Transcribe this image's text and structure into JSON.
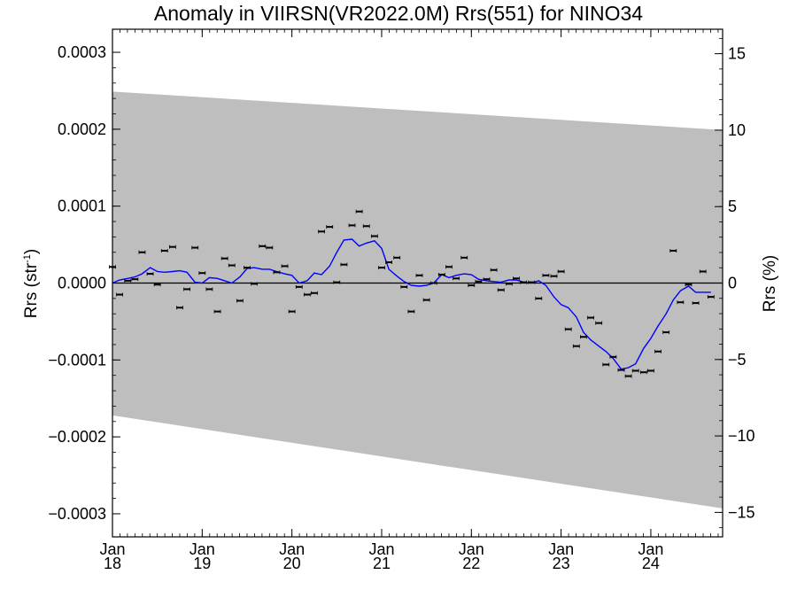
{
  "chart_data": {
    "type": "line",
    "title": "Anomaly in VIIRSN(VR2022.0M) Rrs(551) for NINO34",
    "ylabel_left_main": "Rrs (str",
    "ylabel_left_exp": "-1",
    "ylabel_left_tail": ")",
    "ylabel_right": "Rrs (%)",
    "xlim": [
      2018.0,
      2024.8
    ],
    "ylim_left": [
      -0.00033,
      0.00033
    ],
    "ylim_right": [
      -16.6,
      16.6
    ],
    "yticks_left": [
      "0.0003",
      "0.0002",
      "0.0001",
      "0.0000",
      "−0.0001",
      "−0.0002",
      "−0.0003"
    ],
    "yticks_left_values": [
      0.0003,
      0.0002,
      0.0001,
      0.0,
      -0.0001,
      -0.0002,
      -0.0003
    ],
    "yticks_right": [
      "15",
      "10",
      "5",
      "0",
      "−5",
      "−10",
      "−15"
    ],
    "yticks_right_values": [
      15,
      10,
      5,
      0,
      -5,
      -10,
      -15
    ],
    "xticks": [
      {
        "value": 2018,
        "month": "Jan",
        "year": "18"
      },
      {
        "value": 2019,
        "month": "Jan",
        "year": "19"
      },
      {
        "value": 2020,
        "month": "Jan",
        "year": "20"
      },
      {
        "value": 2021,
        "month": "Jan",
        "year": "21"
      },
      {
        "value": 2022,
        "month": "Jan",
        "year": "22"
      },
      {
        "value": 2023,
        "month": "Jan",
        "year": "23"
      },
      {
        "value": 2024,
        "month": "Jan",
        "year": "24"
      }
    ],
    "band": {
      "color": "#bebebe",
      "upper": [
        [
          2018.0,
          0.000249
        ],
        [
          2024.8,
          0.000199
        ]
      ],
      "lower": [
        [
          2018.0,
          -0.000172
        ],
        [
          2024.8,
          -0.000293
        ]
      ]
    },
    "zero_line": 0.0,
    "points": [
      [
        2018.0,
        2.1e-05
      ],
      [
        2018.08,
        -1.5e-05
      ],
      [
        2018.17,
        3e-06
      ],
      [
        2018.25,
        5e-06
      ],
      [
        2018.33,
        4e-05
      ],
      [
        2018.42,
        1.2e-05
      ],
      [
        2018.5,
        -2e-06
      ],
      [
        2018.58,
        4.2e-05
      ],
      [
        2018.67,
        4.7e-05
      ],
      [
        2018.75,
        -3.2e-05
      ],
      [
        2018.83,
        -8e-06
      ],
      [
        2018.92,
        4.6e-05
      ],
      [
        2019.0,
        1.3e-05
      ],
      [
        2019.08,
        -8e-06
      ],
      [
        2019.17,
        -3.7e-05
      ],
      [
        2019.25,
        3.2e-05
      ],
      [
        2019.33,
        2.3e-05
      ],
      [
        2019.42,
        -2.3e-05
      ],
      [
        2019.5,
        2e-05
      ],
      [
        2019.58,
        -1e-06
      ],
      [
        2019.67,
        4.8e-05
      ],
      [
        2019.75,
        4.6e-05
      ],
      [
        2019.83,
        1.4e-05
      ],
      [
        2019.92,
        2.2e-05
      ],
      [
        2020.0,
        -3.7e-05
      ],
      [
        2020.08,
        -5e-06
      ],
      [
        2020.17,
        -1.5e-05
      ],
      [
        2020.25,
        -1.3e-05
      ],
      [
        2020.33,
        6.7e-05
      ],
      [
        2020.42,
        7.3e-05
      ],
      [
        2020.5,
        1e-06
      ],
      [
        2020.58,
        2.4e-05
      ],
      [
        2020.67,
        7.5e-05
      ],
      [
        2020.75,
        9.3e-05
      ],
      [
        2020.83,
        7.4e-05
      ],
      [
        2020.92,
        6.1e-05
      ],
      [
        2021.0,
        2e-05
      ],
      [
        2021.08,
        2.7e-05
      ],
      [
        2021.17,
        3.3e-05
      ],
      [
        2021.25,
        -5e-06
      ],
      [
        2021.33,
        -3.7e-05
      ],
      [
        2021.42,
        1e-05
      ],
      [
        2021.5,
        -2.2e-05
      ],
      [
        2021.58,
        0.0
      ],
      [
        2021.67,
        1.1e-05
      ],
      [
        2021.75,
        2.1e-05
      ],
      [
        2021.83,
        6e-06
      ],
      [
        2021.92,
        3.3e-05
      ],
      [
        2022.0,
        -3e-06
      ],
      [
        2022.08,
        2e-06
      ],
      [
        2022.17,
        5e-06
      ],
      [
        2022.25,
        1.7e-05
      ],
      [
        2022.33,
        -9e-06
      ],
      [
        2022.42,
        -1e-06
      ],
      [
        2022.5,
        6e-06
      ],
      [
        2022.58,
        1e-06
      ],
      [
        2022.67,
        1e-06
      ],
      [
        2022.75,
        -2e-05
      ],
      [
        2022.83,
        1e-05
      ],
      [
        2022.92,
        9e-06
      ],
      [
        2023.0,
        1.5e-05
      ],
      [
        2023.08,
        -6e-05
      ],
      [
        2023.17,
        -8.2e-05
      ],
      [
        2023.25,
        -7e-05
      ],
      [
        2023.33,
        -4.5e-05
      ],
      [
        2023.42,
        -5.2e-05
      ],
      [
        2023.5,
        -0.000106
      ],
      [
        2023.58,
        -9.6e-05
      ],
      [
        2023.67,
        -0.000113
      ],
      [
        2023.75,
        -0.000121
      ],
      [
        2023.83,
        -0.000114
      ],
      [
        2023.92,
        -0.000116
      ],
      [
        2024.0,
        -0.000114
      ],
      [
        2024.08,
        -8.9e-05
      ],
      [
        2024.17,
        -6.4e-05
      ],
      [
        2024.25,
        4.2e-05
      ],
      [
        2024.33,
        -2.5e-05
      ],
      [
        2024.42,
        -2e-06
      ],
      [
        2024.5,
        -2.6e-05
      ],
      [
        2024.58,
        1.5e-05
      ],
      [
        2024.67,
        -1.8e-05
      ]
    ],
    "smooth_line": [
      [
        2018.0,
        0.0
      ],
      [
        2018.08,
        4e-06
      ],
      [
        2018.17,
        6e-06
      ],
      [
        2018.25,
        8e-06
      ],
      [
        2018.33,
        1.2e-05
      ],
      [
        2018.42,
        2e-05
      ],
      [
        2018.5,
        1.5e-05
      ],
      [
        2018.58,
        1.4e-05
      ],
      [
        2018.67,
        1.5e-05
      ],
      [
        2018.75,
        1.6e-05
      ],
      [
        2018.83,
        1.4e-05
      ],
      [
        2018.92,
        1e-06
      ],
      [
        2019.0,
        0.0
      ],
      [
        2019.08,
        7e-06
      ],
      [
        2019.17,
        6e-06
      ],
      [
        2019.25,
        3e-06
      ],
      [
        2019.33,
        0.0
      ],
      [
        2019.42,
        8e-06
      ],
      [
        2019.5,
        1.9e-05
      ],
      [
        2019.58,
        2e-05
      ],
      [
        2019.67,
        1.8e-05
      ],
      [
        2019.75,
        1.8e-05
      ],
      [
        2019.83,
        1.5e-05
      ],
      [
        2019.92,
        1.2e-05
      ],
      [
        2020.0,
        1e-05
      ],
      [
        2020.08,
        0.0
      ],
      [
        2020.17,
        3e-06
      ],
      [
        2020.25,
        1.3e-05
      ],
      [
        2020.33,
        1.1e-05
      ],
      [
        2020.42,
        2.2e-05
      ],
      [
        2020.5,
        4e-05
      ],
      [
        2020.58,
        5.6e-05
      ],
      [
        2020.67,
        5.7e-05
      ],
      [
        2020.75,
        4.8e-05
      ],
      [
        2020.83,
        5.2e-05
      ],
      [
        2020.92,
        5.5e-05
      ],
      [
        2021.0,
        4.5e-05
      ],
      [
        2021.08,
        1.8e-05
      ],
      [
        2021.17,
        9e-06
      ],
      [
        2021.25,
        2e-06
      ],
      [
        2021.33,
        -3e-06
      ],
      [
        2021.42,
        -4e-06
      ],
      [
        2021.5,
        -3e-06
      ],
      [
        2021.58,
        0.0
      ],
      [
        2021.67,
        1.1e-05
      ],
      [
        2021.75,
        7e-06
      ],
      [
        2021.83,
        1e-05
      ],
      [
        2021.92,
        1.2e-05
      ],
      [
        2022.0,
        1.1e-05
      ],
      [
        2022.08,
        5e-06
      ],
      [
        2022.17,
        3e-06
      ],
      [
        2022.25,
        2e-06
      ],
      [
        2022.33,
        1e-06
      ],
      [
        2022.42,
        4e-06
      ],
      [
        2022.5,
        4e-06
      ],
      [
        2022.58,
        1e-06
      ],
      [
        2022.67,
        0.0
      ],
      [
        2022.75,
        3e-06
      ],
      [
        2022.83,
        -3e-06
      ],
      [
        2022.92,
        -1.8e-05
      ],
      [
        2023.0,
        -2.8e-05
      ],
      [
        2023.08,
        -3.2e-05
      ],
      [
        2023.17,
        -4.4e-05
      ],
      [
        2023.25,
        -6.4e-05
      ],
      [
        2023.33,
        -7.4e-05
      ],
      [
        2023.42,
        -8.2e-05
      ],
      [
        2023.5,
        -8.9e-05
      ],
      [
        2023.58,
        -9.8e-05
      ],
      [
        2023.67,
        -0.000112
      ],
      [
        2023.75,
        -0.00011
      ],
      [
        2023.83,
        -0.000105
      ],
      [
        2023.92,
        -8.5e-05
      ],
      [
        2024.0,
        -7.2e-05
      ],
      [
        2024.08,
        -5.6e-05
      ],
      [
        2024.17,
        -4e-05
      ],
      [
        2024.25,
        -2.2e-05
      ],
      [
        2024.33,
        -1e-05
      ],
      [
        2024.42,
        -4e-06
      ],
      [
        2024.5,
        -1.2e-05
      ],
      [
        2024.58,
        -1.2e-05
      ],
      [
        2024.67,
        -1.2e-05
      ]
    ],
    "smooth_color": "#0000ff",
    "grid": false
  }
}
